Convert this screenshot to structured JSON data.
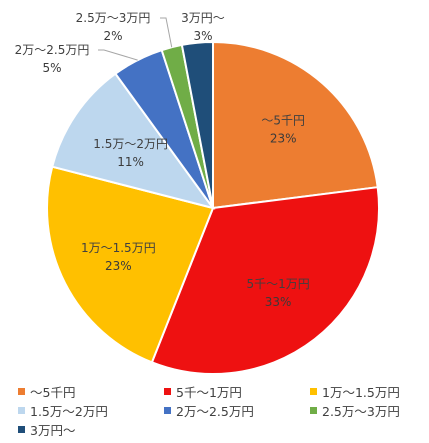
{
  "chart_data": {
    "type": "pie",
    "title": "",
    "categories": [
      "～5千円",
      "5千～1万円",
      "1万～1.5万円",
      "1.5万～2万円",
      "2万～2.5万円",
      "2.5万～3万円",
      "3万円～"
    ],
    "values": [
      23,
      33,
      23,
      11,
      5,
      2,
      3
    ],
    "value_labels": [
      "23%",
      "33%",
      "23%",
      "11%",
      "5%",
      "2%",
      "3%"
    ],
    "colors": [
      "#ED7D31",
      "#EE1111",
      "#FFC000",
      "#BDD7EE",
      "#4472C4",
      "#70AD47",
      "#1F4E79"
    ],
    "start_angle": "12 o'clock",
    "direction": "clockwise",
    "legend_position": "bottom"
  }
}
